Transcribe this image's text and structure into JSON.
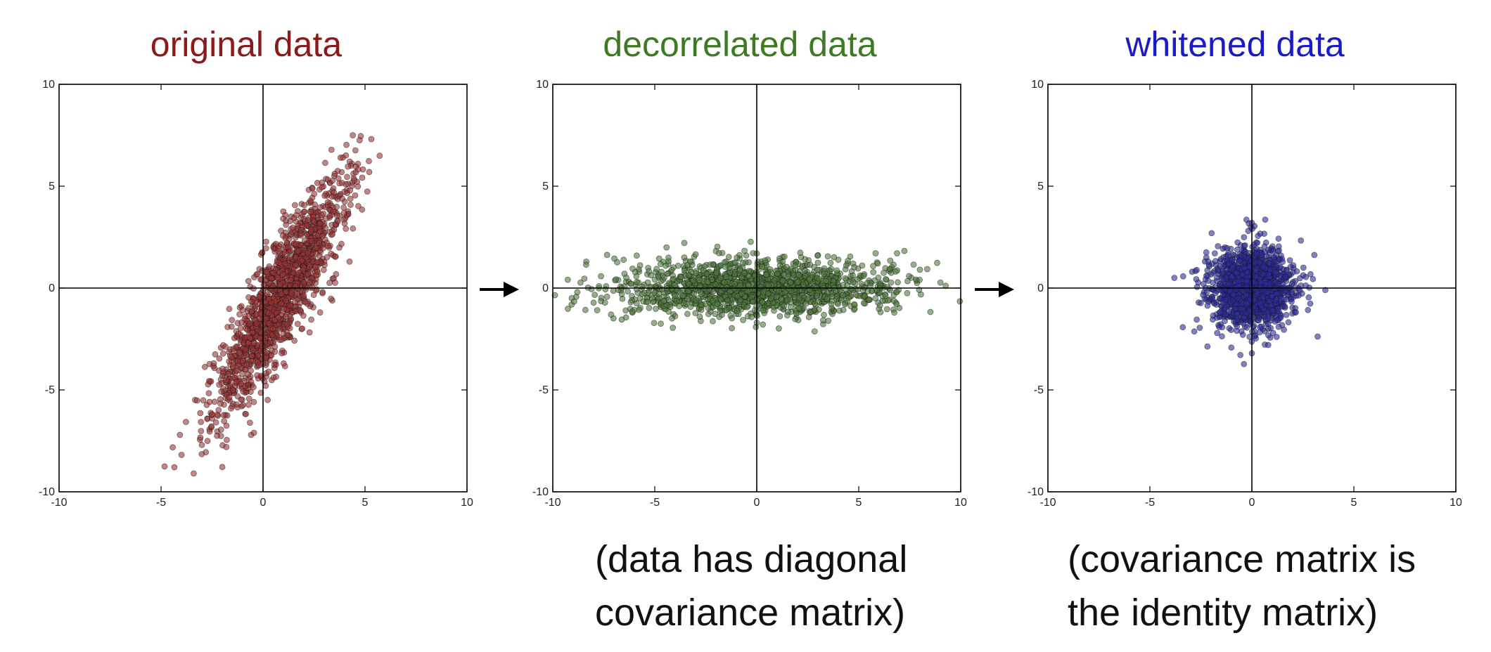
{
  "chart_data": [
    {
      "type": "scatter",
      "title": "original data",
      "title_color": "#8b1a1a",
      "point_color": "#9b3434",
      "xlabel": "",
      "ylabel": "",
      "xlim": [
        -10,
        10
      ],
      "ylim": [
        -10,
        10
      ],
      "xticks": [
        "-10",
        "-5",
        "0",
        "5",
        "10"
      ],
      "yticks": [
        "10",
        "5",
        "0",
        "-5",
        "-10"
      ],
      "grid": false,
      "axes_lines_through_origin": true,
      "distribution": {
        "n_points": 1500,
        "center": [
          0.9,
          -0.3
        ],
        "principal_direction_deg": 62,
        "std_major": 3.4,
        "std_minor": 0.7
      },
      "extent_points": [
        [
          -3.4,
          -9.1
        ],
        [
          4.4,
          7.5
        ],
        [
          -3.0,
          -7.7
        ],
        [
          3.8,
          6.4
        ]
      ]
    },
    {
      "type": "scatter",
      "title": "decorrelated data",
      "title_color": "#3d7a22",
      "point_color": "#4e7a3c",
      "xlabel": "",
      "ylabel": "",
      "xlim": [
        -10,
        10
      ],
      "ylim": [
        -10,
        10
      ],
      "xticks": [
        "-10",
        "-5",
        "0",
        "5",
        "10"
      ],
      "yticks": [
        "10",
        "5",
        "0",
        "-5",
        "-10"
      ],
      "grid": false,
      "axes_lines_through_origin": true,
      "distribution": {
        "n_points": 1500,
        "center": [
          0,
          0
        ],
        "principal_direction_deg": 0,
        "std_major": 3.4,
        "std_minor": 0.7
      },
      "extent_points": [
        [
          -8.8,
          -0.2
        ],
        [
          8.0,
          0.9
        ],
        [
          0,
          1.7
        ],
        [
          0,
          -1.7
        ]
      ]
    },
    {
      "type": "scatter",
      "title": "whitened data",
      "title_color": "#1a1ac8",
      "point_color": "#2b2b9c",
      "xlabel": "",
      "ylabel": "",
      "xlim": [
        -10,
        10
      ],
      "ylim": [
        -10,
        10
      ],
      "xticks": [
        "-10",
        "-5",
        "0",
        "5",
        "10"
      ],
      "yticks": [
        "10",
        "5",
        "0",
        "-5",
        "-10"
      ],
      "grid": false,
      "axes_lines_through_origin": true,
      "distribution": {
        "n_points": 1500,
        "center": [
          0,
          0
        ],
        "principal_direction_deg": 0,
        "std_major": 1.0,
        "std_minor": 1.0
      },
      "extent_points": [
        [
          -3.8,
          0.5
        ],
        [
          3.6,
          -0.1
        ],
        [
          0,
          3.2
        ],
        [
          0,
          -3.2
        ]
      ]
    }
  ],
  "captions": [
    {
      "line1": "(data has diagonal",
      "line2": "covariance matrix)"
    },
    {
      "line1": "(covariance matrix is",
      "line2": "the identity matrix)"
    }
  ],
  "arrow_color": "#000000"
}
